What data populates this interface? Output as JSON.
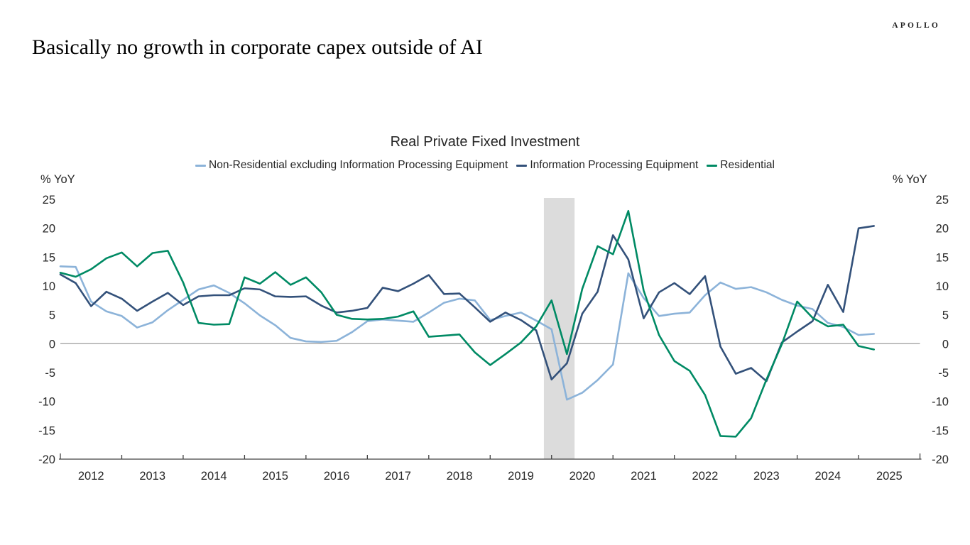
{
  "page": {
    "title": "Basically no growth in corporate capex outside of AI",
    "brand": "APOLLO"
  },
  "chart_data": {
    "type": "line",
    "title": "Real Private Fixed Investment",
    "ylabel_left": "% YoY",
    "ylabel_right": "% YoY",
    "ylim": [
      -20,
      25
    ],
    "ytick_step": 5,
    "frequency": "quarterly",
    "x_start": "2012Q1",
    "x_end": "2025Q2",
    "year_labels": [
      "2012",
      "2013",
      "2014",
      "2015",
      "2016",
      "2017",
      "2018",
      "2019",
      "2020",
      "2021",
      "2022",
      "2023",
      "2024",
      "2025"
    ],
    "grid": false,
    "zero_line": true,
    "legend_position": "top",
    "axis_color": "#404040",
    "zero_line_color": "#a6a6a6",
    "text_color": "#262626",
    "recession_band": {
      "from": "2020Q1",
      "to": "2020Q2",
      "color": "#dcdcdc"
    },
    "series": [
      {
        "name": "Non-Residential excluding Information Processing Equipment",
        "color": "#8cb3d9",
        "values": [
          13.4,
          13.3,
          7.3,
          5.6,
          4.8,
          2.8,
          3.7,
          5.8,
          7.6,
          9.4,
          10.1,
          8.8,
          7.0,
          4.9,
          3.2,
          1.0,
          0.4,
          0.3,
          0.5,
          2.0,
          3.9,
          4.2,
          4.0,
          3.8,
          5.4,
          7.1,
          7.8,
          7.5,
          4.1,
          4.8,
          5.4,
          4.0,
          2.5,
          -9.7,
          -8.5,
          -6.3,
          -3.6,
          12.2,
          7.9,
          4.8,
          5.2,
          5.4,
          8.4,
          10.6,
          9.5,
          9.8,
          8.9,
          7.6,
          6.6,
          6.0,
          3.6,
          2.9,
          1.5,
          1.7
        ]
      },
      {
        "name": "Information Processing Equipment",
        "color": "#33517a",
        "values": [
          12.0,
          10.5,
          6.5,
          9.0,
          7.8,
          5.7,
          7.3,
          8.8,
          6.7,
          8.2,
          8.4,
          8.4,
          9.6,
          9.4,
          8.2,
          8.1,
          8.2,
          6.6,
          5.4,
          5.7,
          6.2,
          9.7,
          9.1,
          10.4,
          11.9,
          8.6,
          8.7,
          6.3,
          3.8,
          5.4,
          4.1,
          2.3,
          -6.2,
          -3.4,
          5.2,
          9.0,
          18.8,
          14.6,
          4.4,
          8.9,
          10.5,
          8.6,
          11.7,
          -0.5,
          -5.2,
          -4.2,
          -6.5,
          0.2,
          2.1,
          3.9,
          10.2,
          5.5,
          20.0,
          20.4
        ]
      },
      {
        "name": "Residential",
        "color": "#008a64",
        "values": [
          12.3,
          11.6,
          12.9,
          14.8,
          15.8,
          13.4,
          15.7,
          16.1,
          10.6,
          3.6,
          3.3,
          3.4,
          11.5,
          10.4,
          12.4,
          10.2,
          11.5,
          8.9,
          5.0,
          4.3,
          4.2,
          4.3,
          4.7,
          5.6,
          1.2,
          1.4,
          1.6,
          -1.5,
          -3.7,
          -1.8,
          0.2,
          3.0,
          7.5,
          -1.8,
          9.5,
          16.9,
          15.5,
          23.0,
          9.2,
          1.5,
          -3.0,
          -4.7,
          -8.9,
          -16.0,
          -16.1,
          -12.9,
          -6.2,
          -0.1,
          7.3,
          4.5,
          3.0,
          3.3,
          -0.4,
          -1.0
        ]
      }
    ]
  }
}
